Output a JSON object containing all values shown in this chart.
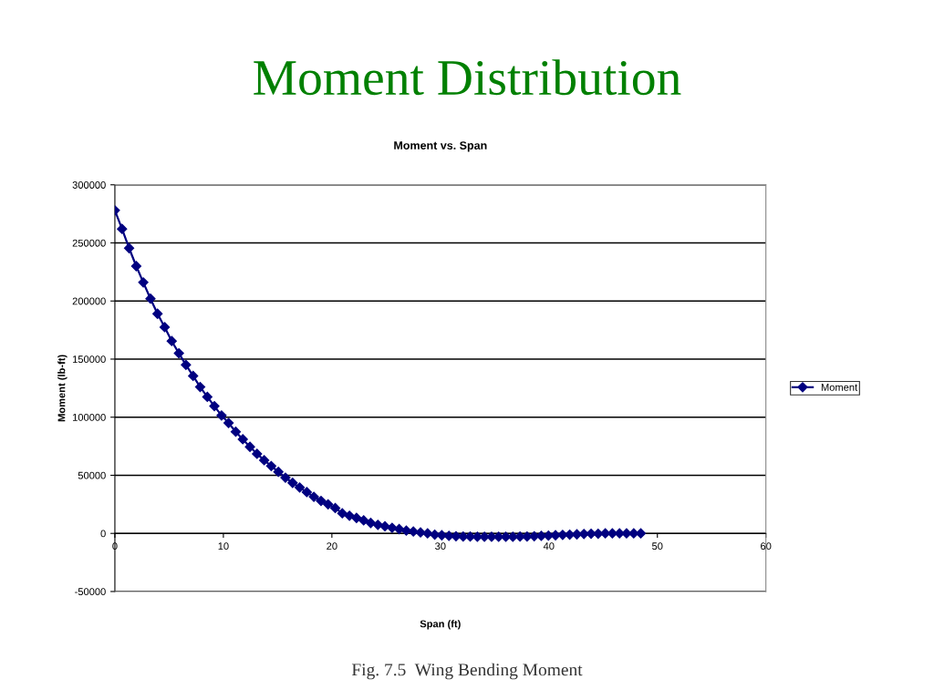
{
  "chart_data": {
    "type": "line",
    "title": "Moment Distribution",
    "subtitle": "Moment vs. Span",
    "xlabel": "Span (ft)",
    "ylabel": "Moment (lb-ft)",
    "annotations": [
      "Fig. 7.5  Wing Bending Moment"
    ],
    "xlim": [
      0,
      60
    ],
    "xticks": [
      0,
      10,
      20,
      30,
      40,
      50,
      60
    ],
    "ylim": [
      -50000,
      300000
    ],
    "yticks": [
      -50000,
      0,
      50000,
      100000,
      150000,
      200000,
      250000,
      300000
    ],
    "grid": "y",
    "legend": "right",
    "marker": "diamond",
    "line_style": "solid",
    "series": [
      {
        "name": "Moment",
        "color": "#000080",
        "x": [
          0,
          0.66,
          1.31,
          1.97,
          2.62,
          3.28,
          3.93,
          4.59,
          5.24,
          5.9,
          6.55,
          7.21,
          7.86,
          8.52,
          9.17,
          9.83,
          10.48,
          11.14,
          11.79,
          12.45,
          13.1,
          13.76,
          14.41,
          15.07,
          15.72,
          16.38,
          17.03,
          17.69,
          18.34,
          19.0,
          19.65,
          20.31,
          20.96,
          21.62,
          22.27,
          22.93,
          23.58,
          24.24,
          24.89,
          25.55,
          26.2,
          26.86,
          27.51,
          28.17,
          28.82,
          29.48,
          30.13,
          30.79,
          31.44,
          32.1,
          32.75,
          33.41,
          34.06,
          34.72,
          35.37,
          36.03,
          36.68,
          37.34,
          37.99,
          38.65,
          39.3,
          39.96,
          40.61,
          41.27,
          41.92,
          42.58,
          43.23,
          43.89,
          44.54,
          45.2,
          45.85,
          46.51,
          47.16,
          47.82,
          48.47
        ],
        "values": [
          278000,
          262000,
          245500,
          230000,
          216000,
          202000,
          189000,
          177500,
          165500,
          155000,
          145000,
          135500,
          126000,
          117500,
          109500,
          101500,
          95000,
          87500,
          81000,
          74500,
          68500,
          63000,
          58000,
          53000,
          48000,
          43500,
          39500,
          35500,
          31500,
          28000,
          25000,
          21800,
          17300,
          15200,
          13300,
          11200,
          9000,
          7400,
          6100,
          4800,
          3700,
          2400,
          1600,
          800,
          0,
          -1100,
          -1600,
          -2100,
          -2400,
          -2700,
          -2700,
          -2900,
          -2900,
          -2900,
          -2900,
          -2900,
          -2900,
          -2700,
          -2700,
          -2400,
          -2100,
          -1900,
          -1600,
          -1300,
          -1100,
          -800,
          -500,
          -300,
          -300,
          0,
          0,
          0,
          0,
          0,
          0
        ]
      }
    ]
  }
}
